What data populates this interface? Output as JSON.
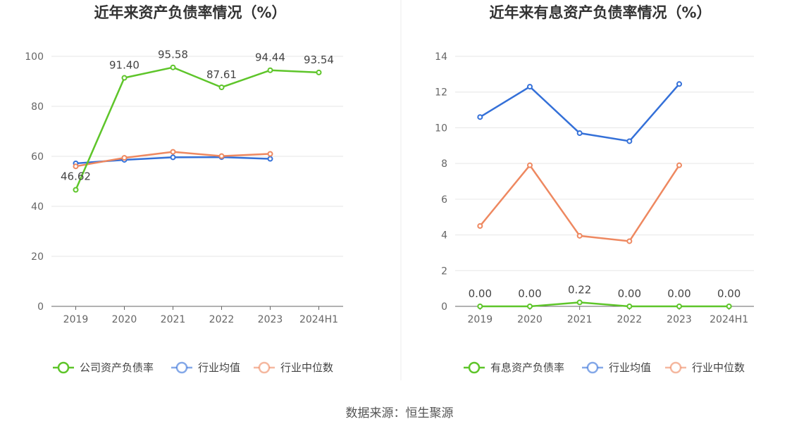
{
  "source": "数据来源：恒生聚源",
  "colors": {
    "green": "#5ec52a",
    "blue": "#3470d8",
    "orange": "#ee8860"
  },
  "chart_data": [
    {
      "type": "line",
      "title": "近年来资产负债率情况（%）",
      "categories": [
        "2019",
        "2020",
        "2021",
        "2022",
        "2023",
        "2024H1"
      ],
      "ylim": [
        0,
        100
      ],
      "yticks": [
        "0",
        "20",
        "40",
        "60",
        "80",
        "100"
      ],
      "grid": true,
      "legend": "bottom",
      "series": [
        {
          "name": "公司资产负债率",
          "color": "#5ec52a",
          "values": [
            46.62,
            91.4,
            95.58,
            87.61,
            94.44,
            93.54
          ],
          "labels": [
            "46.62",
            "91.40",
            "95.58",
            "87.61",
            "94.44",
            "93.54"
          ]
        },
        {
          "name": "行业均值",
          "color": "#3470d8",
          "values": [
            57.2,
            58.6,
            59.6,
            59.7,
            59.0,
            null
          ]
        },
        {
          "name": "行业中位数",
          "color": "#ee8860",
          "values": [
            56.0,
            59.4,
            61.8,
            60.1,
            61.0,
            null
          ]
        }
      ]
    },
    {
      "type": "line",
      "title": "近年来有息资产负债率情况（%）",
      "categories": [
        "2019",
        "2020",
        "2021",
        "2022",
        "2023",
        "2024H1"
      ],
      "ylim": [
        0,
        14
      ],
      "yticks": [
        "0",
        "2",
        "4",
        "6",
        "8",
        "10",
        "12",
        "14"
      ],
      "grid": true,
      "legend": "bottom",
      "series": [
        {
          "name": "有息资产负债率",
          "color": "#5ec52a",
          "values": [
            0.0,
            0.0,
            0.22,
            0.0,
            0.0,
            0.0
          ],
          "labels": [
            "0.00",
            "0.00",
            "0.22",
            "0.00",
            "0.00",
            "0.00"
          ]
        },
        {
          "name": "行业均值",
          "color": "#3470d8",
          "values": [
            10.6,
            12.3,
            9.7,
            9.25,
            12.45,
            null
          ]
        },
        {
          "name": "行业中位数",
          "color": "#ee8860",
          "values": [
            4.5,
            7.9,
            3.95,
            3.65,
            7.9,
            null
          ]
        }
      ]
    }
  ]
}
